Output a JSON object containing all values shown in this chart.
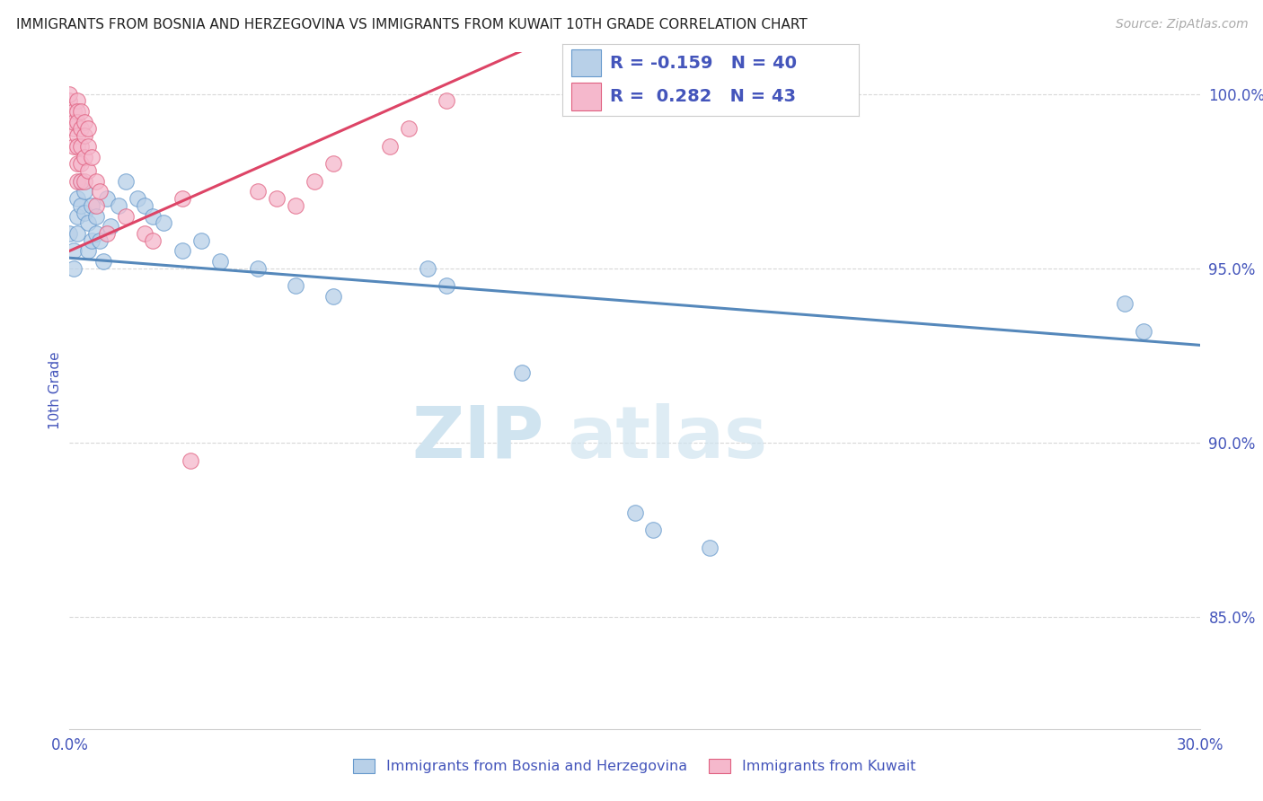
{
  "title": "IMMIGRANTS FROM BOSNIA AND HERZEGOVINA VS IMMIGRANTS FROM KUWAIT 10TH GRADE CORRELATION CHART",
  "source": "Source: ZipAtlas.com",
  "label_bosnia": "Immigrants from Bosnia and Herzegovina",
  "label_kuwait": "Immigrants from Kuwait",
  "ylabel": "10th Grade",
  "xlim": [
    0.0,
    0.3
  ],
  "ylim": [
    0.818,
    1.012
  ],
  "xticks": [
    0.0,
    0.05,
    0.1,
    0.15,
    0.2,
    0.25,
    0.3
  ],
  "xtick_labels": [
    "0.0%",
    "",
    "",
    "",
    "",
    "",
    "30.0%"
  ],
  "yticks": [
    0.85,
    0.9,
    0.95,
    1.0
  ],
  "ytick_labels": [
    "85.0%",
    "90.0%",
    "95.0%",
    "100.0%"
  ],
  "bosnia_fill": "#b8d0e8",
  "kuwait_fill": "#f5b8cc",
  "bosnia_edge": "#6699cc",
  "kuwait_edge": "#e06080",
  "bosnia_line": "#5588bb",
  "kuwait_line": "#dd4466",
  "legend_R_bosnia": "-0.159",
  "legend_N_bosnia": "40",
  "legend_R_kuwait": "0.282",
  "legend_N_kuwait": "43",
  "bosnia_x": [
    0.0,
    0.001,
    0.001,
    0.002,
    0.002,
    0.002,
    0.003,
    0.003,
    0.004,
    0.004,
    0.005,
    0.005,
    0.006,
    0.006,
    0.007,
    0.007,
    0.008,
    0.009,
    0.01,
    0.011,
    0.013,
    0.015,
    0.018,
    0.02,
    0.022,
    0.025,
    0.03,
    0.035,
    0.04,
    0.05,
    0.06,
    0.07,
    0.095,
    0.1,
    0.12,
    0.15,
    0.155,
    0.17,
    0.28,
    0.285
  ],
  "bosnia_y": [
    0.96,
    0.955,
    0.95,
    0.97,
    0.965,
    0.96,
    0.975,
    0.968,
    0.972,
    0.966,
    0.963,
    0.955,
    0.968,
    0.958,
    0.965,
    0.96,
    0.958,
    0.952,
    0.97,
    0.962,
    0.968,
    0.975,
    0.97,
    0.968,
    0.965,
    0.963,
    0.955,
    0.958,
    0.952,
    0.95,
    0.945,
    0.942,
    0.95,
    0.945,
    0.92,
    0.88,
    0.875,
    0.87,
    0.94,
    0.932
  ],
  "kuwait_x": [
    0.0,
    0.0,
    0.001,
    0.001,
    0.001,
    0.001,
    0.002,
    0.002,
    0.002,
    0.002,
    0.002,
    0.002,
    0.002,
    0.003,
    0.003,
    0.003,
    0.003,
    0.003,
    0.004,
    0.004,
    0.004,
    0.004,
    0.005,
    0.005,
    0.005,
    0.006,
    0.007,
    0.007,
    0.008,
    0.02,
    0.022,
    0.03,
    0.05,
    0.055,
    0.06,
    0.065,
    0.07,
    0.085,
    0.09,
    0.1,
    0.015,
    0.01,
    0.032
  ],
  "kuwait_y": [
    0.998,
    1.0,
    0.99,
    0.995,
    0.985,
    0.992,
    0.998,
    0.995,
    0.992,
    0.988,
    0.985,
    0.98,
    0.975,
    0.995,
    0.99,
    0.985,
    0.98,
    0.975,
    0.992,
    0.988,
    0.982,
    0.975,
    0.99,
    0.985,
    0.978,
    0.982,
    0.975,
    0.968,
    0.972,
    0.96,
    0.958,
    0.97,
    0.972,
    0.97,
    0.968,
    0.975,
    0.98,
    0.985,
    0.99,
    0.998,
    0.965,
    0.96,
    0.895
  ],
  "background_color": "#ffffff",
  "grid_color": "#d8d8d8",
  "title_color": "#222222",
  "axis_color": "#4455bb",
  "watermark_color": "#d0e4f0"
}
